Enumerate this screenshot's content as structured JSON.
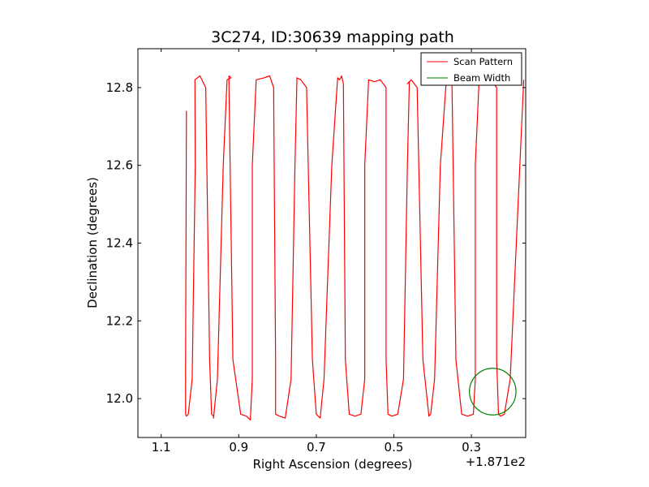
{
  "chart_data": {
    "type": "line",
    "title": "3C274, ID:30639 mapping path",
    "xlabel": "Right Ascension (degrees)",
    "ylabel": "Declination (degrees)",
    "x_offset_label": "+1.871e2",
    "xlim": [
      1.16,
      0.16
    ],
    "ylim": [
      11.9,
      12.9
    ],
    "x_inverted": true,
    "x_ticks": [
      1.1,
      0.9,
      0.7,
      0.5,
      0.3
    ],
    "x_tick_labels": [
      "1.1",
      "0.9",
      "0.7",
      "0.5",
      "0.3"
    ],
    "y_ticks": [
      12.0,
      12.2,
      12.4,
      12.6,
      12.8
    ],
    "y_tick_labels": [
      "12.0",
      "12.2",
      "12.4",
      "12.6",
      "12.8"
    ],
    "grid": false,
    "legend_position": "top-right",
    "colors": {
      "scan": "#ff0000",
      "beam": "#008000"
    },
    "series": [
      {
        "name": "Scan Pattern",
        "x": [
          1.035,
          1.037,
          1.037,
          1.035,
          1.03,
          1.02,
          1.012,
          1.013,
          1.013,
          1.0,
          0.985,
          0.975,
          0.97,
          0.965,
          0.965,
          0.955,
          0.94,
          0.93,
          0.92,
          0.925,
          0.925,
          0.915,
          0.895,
          0.88,
          0.87,
          0.865,
          0.865,
          0.855,
          0.835,
          0.82,
          0.81,
          0.805,
          0.805,
          0.795,
          0.78,
          0.765,
          0.755,
          0.75,
          0.75,
          0.74,
          0.725,
          0.71,
          0.7,
          0.695,
          0.69,
          0.68,
          0.66,
          0.645,
          0.64,
          0.635,
          0.63,
          0.625,
          0.615,
          0.6,
          0.585,
          0.575,
          0.575,
          0.565,
          0.55,
          0.535,
          0.52,
          0.52,
          0.515,
          0.505,
          0.49,
          0.475,
          0.465,
          0.46,
          0.465,
          0.455,
          0.44,
          0.425,
          0.41,
          0.41,
          0.405,
          0.395,
          0.38,
          0.365,
          0.355,
          0.35,
          0.35,
          0.34,
          0.325,
          0.31,
          0.295,
          0.29,
          0.29,
          0.28,
          0.265,
          0.25,
          0.235,
          0.235,
          0.23,
          0.225,
          0.215,
          0.2,
          0.175,
          0.165
        ],
        "y": [
          12.74,
          12.1,
          11.96,
          11.955,
          11.96,
          12.05,
          12.6,
          12.815,
          12.82,
          12.83,
          12.8,
          12.1,
          11.96,
          11.955,
          11.95,
          12.05,
          12.6,
          12.82,
          12.825,
          12.83,
          12.8,
          12.1,
          11.96,
          11.955,
          11.945,
          12.05,
          12.6,
          12.82,
          12.825,
          12.83,
          12.8,
          12.1,
          11.96,
          11.955,
          11.95,
          12.05,
          12.6,
          12.82,
          12.825,
          12.82,
          12.8,
          12.1,
          11.96,
          11.955,
          11.95,
          12.05,
          12.6,
          12.825,
          12.82,
          12.83,
          12.81,
          12.1,
          11.96,
          11.955,
          11.96,
          12.05,
          12.6,
          12.82,
          12.815,
          12.82,
          12.8,
          12.1,
          11.96,
          11.955,
          11.96,
          12.05,
          12.6,
          12.815,
          12.81,
          12.82,
          12.8,
          12.1,
          11.96,
          11.955,
          11.96,
          12.05,
          12.6,
          12.815,
          12.81,
          12.82,
          12.8,
          12.1,
          11.96,
          11.955,
          11.96,
          12.05,
          12.6,
          12.82,
          12.815,
          12.82,
          12.8,
          12.1,
          11.96,
          11.955,
          11.96,
          12.05,
          12.6,
          12.82
        ]
      },
      {
        "name": "Beam Width",
        "shape": "circle",
        "center": [
          0.245,
          12.018
        ],
        "radius_ra": 0.06,
        "radius_dec": 0.06
      }
    ]
  }
}
